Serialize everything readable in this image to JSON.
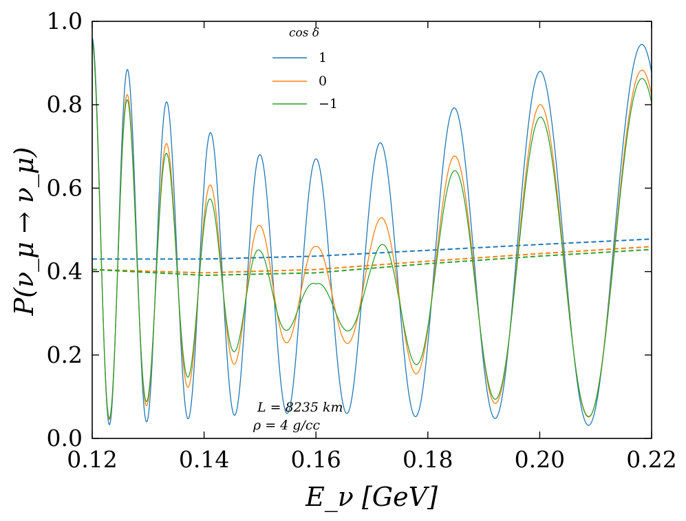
{
  "chart_data": {
    "type": "line",
    "xlabel": "E_ν [GeV]",
    "ylabel": "P(ν_μ → ν_μ)",
    "xlim": [
      0.12,
      0.22
    ],
    "ylim": [
      0.0,
      1.0
    ],
    "x_ticks": [
      0.12,
      0.14,
      0.16,
      0.18,
      0.2,
      0.22
    ],
    "x_tick_labels": [
      "0.12",
      "0.14",
      "0.16",
      "0.18",
      "0.20",
      "0.22"
    ],
    "y_ticks": [
      0.0,
      0.2,
      0.4,
      0.6,
      0.8,
      1.0
    ],
    "y_tick_labels": [
      "0.0",
      "0.2",
      "0.4",
      "0.6",
      "0.8",
      "1.0"
    ],
    "legend": {
      "title": "cos δ",
      "position": "top-center",
      "entries": [
        {
          "label": "1",
          "color": "#1f77b4"
        },
        {
          "label": "0",
          "color": "#ff7f0e"
        },
        {
          "label": "−1",
          "color": "#2ca02c"
        }
      ]
    },
    "annotations": [
      "L = 8235 km",
      "ρ = 4 g/cc"
    ],
    "oscillation": {
      "phase_coefficient": 7.54,
      "x_start": 0.12,
      "x_end": 0.22
    },
    "series": [
      {
        "name": "cos δ = 1",
        "color": "#1f77b4",
        "style": "solid",
        "envelope_x": [
          0.12,
          0.13,
          0.14,
          0.15,
          0.16,
          0.17,
          0.18,
          0.19,
          0.2,
          0.21,
          0.22
        ],
        "envelope_max": [
          0.96,
          0.84,
          0.74,
          0.68,
          0.67,
          0.7,
          0.76,
          0.83,
          0.88,
          0.92,
          0.95
        ],
        "envelope_min": [
          0.03,
          0.04,
          0.05,
          0.06,
          0.06,
          0.06,
          0.05,
          0.05,
          0.04,
          0.03,
          0.03
        ]
      },
      {
        "name": "cos δ = 0",
        "color": "#ff7f0e",
        "style": "solid",
        "envelope_x": [
          0.12,
          0.13,
          0.14,
          0.15,
          0.16,
          0.17,
          0.18,
          0.19,
          0.2,
          0.21,
          0.22
        ],
        "envelope_max": [
          0.95,
          0.75,
          0.62,
          0.51,
          0.46,
          0.51,
          0.63,
          0.73,
          0.8,
          0.85,
          0.89
        ],
        "envelope_min": [
          0.03,
          0.08,
          0.14,
          0.21,
          0.25,
          0.21,
          0.14,
          0.09,
          0.06,
          0.05,
          0.04
        ]
      },
      {
        "name": "cos δ = −1",
        "color": "#2ca02c",
        "style": "solid",
        "envelope_x": [
          0.12,
          0.13,
          0.14,
          0.15,
          0.16,
          0.17,
          0.18,
          0.19,
          0.2,
          0.21,
          0.22
        ],
        "envelope_max": [
          0.95,
          0.73,
          0.59,
          0.45,
          0.37,
          0.44,
          0.59,
          0.7,
          0.77,
          0.83,
          0.87
        ],
        "envelope_min": [
          0.03,
          0.09,
          0.17,
          0.24,
          0.28,
          0.24,
          0.16,
          0.1,
          0.07,
          0.05,
          0.04
        ]
      },
      {
        "name": "cos δ = 1 (average)",
        "color": "#1f77b4",
        "style": "dashed",
        "x": [
          0.12,
          0.14,
          0.16,
          0.18,
          0.2,
          0.22
        ],
        "y": [
          0.43,
          0.43,
          0.437,
          0.451,
          0.465,
          0.478
        ]
      },
      {
        "name": "cos δ = 0 (average)",
        "color": "#ff7f0e",
        "style": "dashed",
        "x": [
          0.12,
          0.14,
          0.16,
          0.18,
          0.2,
          0.22
        ],
        "y": [
          0.405,
          0.397,
          0.405,
          0.425,
          0.443,
          0.46
        ]
      },
      {
        "name": "cos δ = −1 (average)",
        "color": "#2ca02c",
        "style": "dashed",
        "x": [
          0.12,
          0.14,
          0.16,
          0.18,
          0.2,
          0.22
        ],
        "y": [
          0.405,
          0.391,
          0.397,
          0.419,
          0.437,
          0.453
        ]
      }
    ]
  }
}
